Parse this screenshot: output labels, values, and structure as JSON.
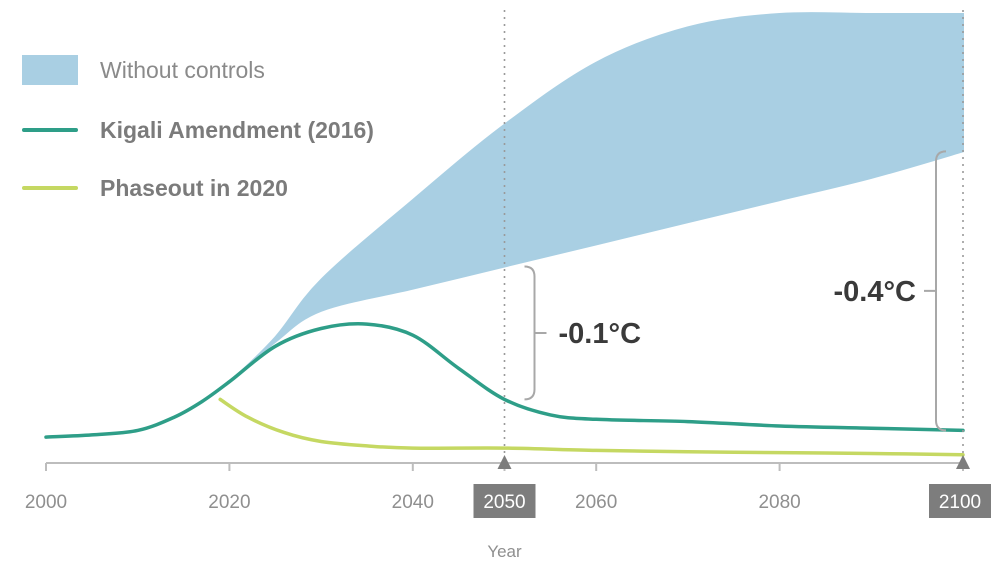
{
  "chart_data": {
    "type": "area",
    "xlabel": "Year",
    "ylabel": "",
    "xlim": [
      2000,
      2100
    ],
    "ylim": [
      0,
      1
    ],
    "x_ticks": [
      "2000",
      "2020",
      "2040",
      "2050",
      "2060",
      "2080",
      "2100"
    ],
    "highlighted_ticks": [
      "2050",
      "2100"
    ],
    "series": [
      {
        "name": "Without controls",
        "kind": "band",
        "color": "#a9cfe3",
        "x": [
          2000,
          2005,
          2010,
          2014,
          2017,
          2020,
          2025,
          2030,
          2040,
          2050,
          2060,
          2070,
          2080,
          2090,
          2100
        ],
        "lower": [
          0.045,
          0.05,
          0.06,
          0.09,
          0.125,
          0.17,
          0.26,
          0.33,
          0.38,
          0.43,
          0.48,
          0.53,
          0.58,
          0.63,
          0.69
        ],
        "upper": [
          0.045,
          0.05,
          0.06,
          0.09,
          0.125,
          0.17,
          0.27,
          0.4,
          0.58,
          0.75,
          0.89,
          0.97,
          1.0,
          1.0,
          1.0
        ]
      },
      {
        "name": "Kigali Amendment (2016)",
        "kind": "line",
        "color": "#2e9e88",
        "x": [
          2000,
          2005,
          2010,
          2014,
          2017,
          2020,
          2025,
          2030,
          2035,
          2040,
          2045,
          2050,
          2055,
          2060,
          2070,
          2080,
          2090,
          2100
        ],
        "y": [
          0.045,
          0.05,
          0.06,
          0.09,
          0.125,
          0.17,
          0.25,
          0.29,
          0.3,
          0.275,
          0.2,
          0.13,
          0.095,
          0.085,
          0.08,
          0.07,
          0.065,
          0.06
        ]
      },
      {
        "name": "Phaseout in 2020",
        "kind": "line",
        "color": "#c5d862",
        "x": [
          2019,
          2022,
          2026,
          2030,
          2035,
          2040,
          2050,
          2060,
          2070,
          2080,
          2090,
          2100
        ],
        "y": [
          0.13,
          0.09,
          0.055,
          0.035,
          0.025,
          0.02,
          0.02,
          0.015,
          0.012,
          0.01,
          0.008,
          0.005
        ]
      }
    ],
    "annotations": [
      {
        "x": 2050,
        "label": "-0.1°C",
        "from": 0.13,
        "to": 0.43
      },
      {
        "x": 2100,
        "label": "-0.4°C",
        "from": 0.06,
        "to": 0.69
      }
    ]
  },
  "legend": [
    {
      "label": "Without controls",
      "style": "band",
      "color": "#a9cfe3",
      "bold": false
    },
    {
      "label": "Kigali Amendment (2016)",
      "style": "line",
      "color": "#2e9e88",
      "bold": true
    },
    {
      "label": "Phaseout in 2020",
      "style": "line",
      "color": "#c5d862",
      "bold": true
    }
  ]
}
